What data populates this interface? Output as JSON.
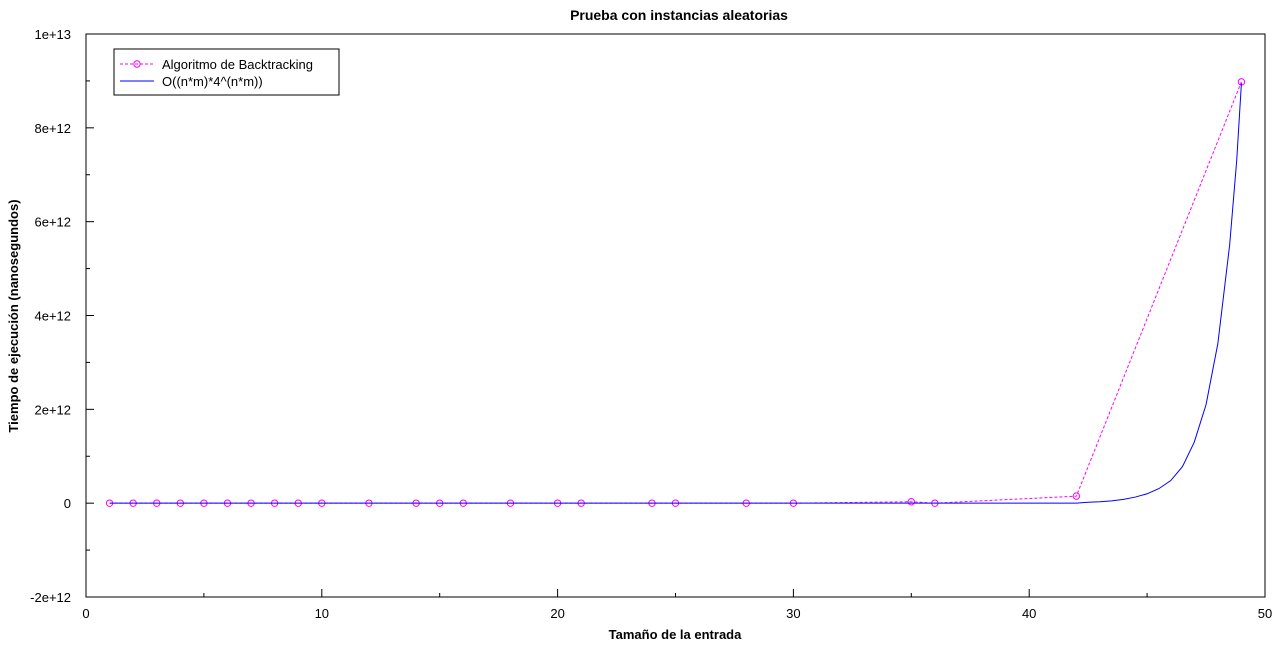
{
  "chart_data": {
    "type": "line",
    "title": "Prueba con instancias aleatorias",
    "xlabel": "Tamaño de la entrada",
    "ylabel": "Tiempo de ejecución (nanosegundos)",
    "xlim": [
      0,
      50
    ],
    "ylim": [
      -2000000000000.0,
      10000000000000.0
    ],
    "x_ticks": [
      0,
      10,
      20,
      30,
      40,
      50
    ],
    "x_tick_labels": [
      "0",
      "10",
      "20",
      "30",
      "40",
      "50"
    ],
    "y_ticks": [
      -2000000000000.0,
      0,
      2000000000000.0,
      4000000000000.0,
      6000000000000.0,
      8000000000000.0,
      10000000000000.0
    ],
    "y_tick_labels": [
      "-2e+12",
      "0",
      "2e+12",
      "4e+12",
      "6e+12",
      "8e+12",
      "1e+13"
    ],
    "grid": false,
    "legend_position": "top-left",
    "series": [
      {
        "name": "Algoritmo de Backtracking",
        "color": "#ff00ff",
        "line_style": "dashed",
        "marker": "circle",
        "x": [
          1,
          2,
          3,
          4,
          5,
          6,
          7,
          8,
          9,
          10,
          12,
          14,
          15,
          16,
          18,
          20,
          21,
          24,
          25,
          28,
          30,
          35,
          36,
          42,
          49
        ],
        "y": [
          0,
          0,
          0,
          0,
          0,
          0,
          0,
          0,
          0,
          0,
          0,
          0,
          0,
          0,
          0,
          0,
          0,
          0,
          0,
          0,
          0,
          30000000000,
          0,
          150000000000,
          8980000000000
        ]
      },
      {
        "name": "O((n*m)*4^(n*m))",
        "color": "#0000ff",
        "line_style": "solid",
        "marker": "none",
        "x": [
          1,
          2,
          3,
          4,
          5,
          6,
          7,
          8,
          9,
          10,
          12,
          14,
          16,
          18,
          20,
          22,
          24,
          26,
          28,
          30,
          32,
          34,
          36,
          38,
          40,
          41,
          42,
          42.5,
          43,
          43.5,
          44,
          44.5,
          45,
          45.5,
          46,
          46.5,
          47,
          47.5,
          48,
          48.5,
          48.8,
          49
        ],
        "y": [
          0,
          0,
          0,
          0,
          0,
          0,
          0,
          0,
          0,
          0,
          0,
          0,
          0,
          0,
          0,
          0,
          0,
          0,
          0,
          0,
          0,
          0,
          0,
          0,
          0,
          0,
          0,
          20000000000,
          30000000000,
          50000000000,
          80000000000,
          130000000000,
          200000000000,
          310000000000,
          480000000000,
          780000000000,
          1300000000000,
          2100000000000,
          3400000000000,
          5500000000000,
          7300000000000,
          8950000000000
        ]
      }
    ]
  }
}
